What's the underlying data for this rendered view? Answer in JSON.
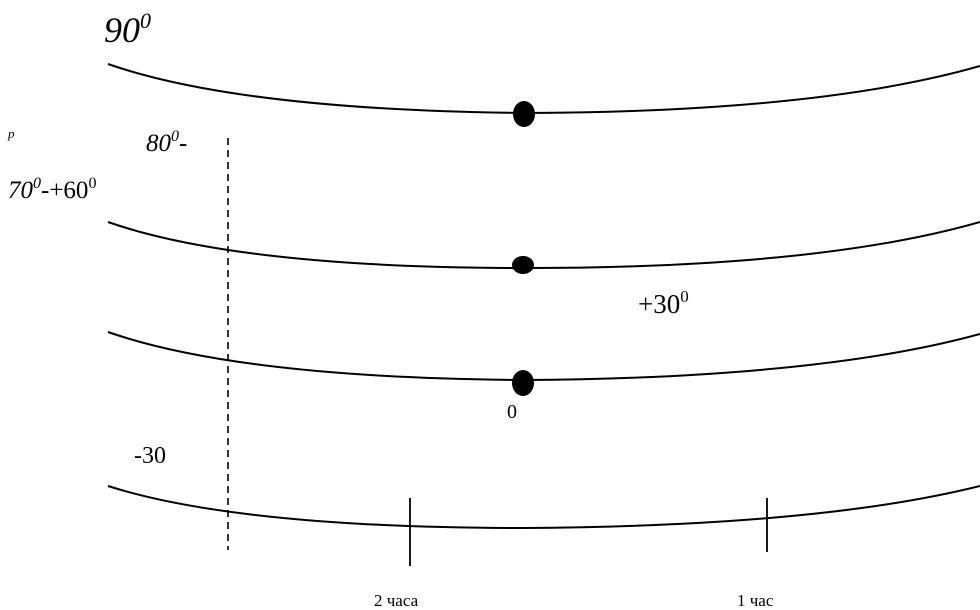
{
  "labels": {
    "lat_90": "90",
    "lat_90_sup": "0",
    "p_mark": "p",
    "lat_80": "80",
    "lat_80_sup": "0",
    "lat_80_suffix": "-",
    "lat_70": "70",
    "lat_70_sup": "0",
    "lat_70_suffix": "-+60",
    "lat_70_sup2": "0",
    "plus30": "+30",
    "plus30_sup": "0",
    "zero": "0",
    "minus30": "-30",
    "two_hours": "2 часа",
    "one_hour": "1 час"
  }
}
